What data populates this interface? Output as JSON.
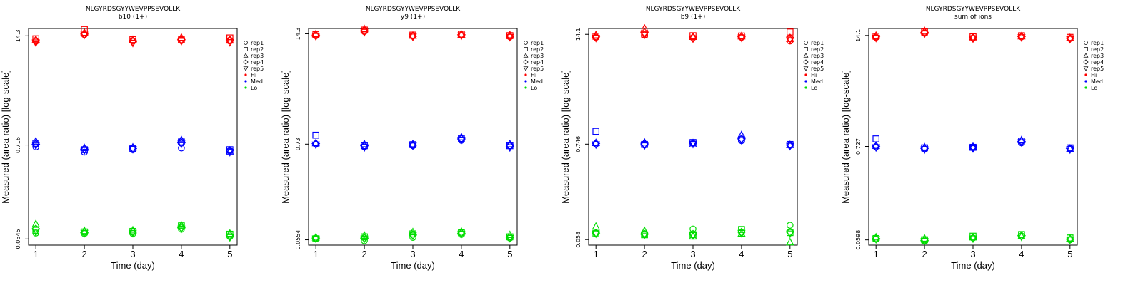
{
  "colors": {
    "Hi": "#ff0000",
    "Med": "#0000ff",
    "Lo": "#00dd00"
  },
  "legend": {
    "placement": "right",
    "reps": [
      {
        "label": "rep1",
        "shape": "circle"
      },
      {
        "label": "rep2",
        "shape": "square"
      },
      {
        "label": "rep3",
        "shape": "triangle-up"
      },
      {
        "label": "rep4",
        "shape": "diamond"
      },
      {
        "label": "rep5",
        "shape": "triangle-down"
      }
    ],
    "levels": [
      "Hi",
      "Med",
      "Lo"
    ]
  },
  "chart_data": [
    {
      "type": "scatter",
      "title": "NLGYRDSGYYWEVPPSEVQLLK",
      "subtitle": "b10 (1+)",
      "xlabel": "Time (day)",
      "ylabel": "Measured (area ratio) [log-scale]",
      "y_scale": "log",
      "x_ticks": [
        1,
        2,
        3,
        4,
        5
      ],
      "y_ticks": [
        0.0545,
        0.716,
        14.3
      ],
      "y_tick_labels": [
        "0.0545",
        "0.716",
        "14.3"
      ],
      "xlim": [
        0.85,
        5.15
      ],
      "ylim": [
        0.046,
        17.5
      ],
      "series": {
        "Hi": {
          "rep1": [
            12.3,
            14.8,
            12.5,
            12.6,
            12.4
          ],
          "rep2": [
            13.2,
            17.0,
            12.9,
            12.8,
            13.5
          ],
          "rep3": [
            12.9,
            15.6,
            12.8,
            13.6,
            12.6
          ],
          "rep4": [
            12.5,
            15.0,
            12.2,
            12.9,
            12.8
          ],
          "rep5": [
            11.9,
            14.7,
            11.8,
            12.4,
            12.0
          ]
        },
        "Med": {
          "rep1": [
            0.68,
            0.59,
            0.63,
            0.66,
            0.61
          ],
          "rep2": [
            0.75,
            0.63,
            0.65,
            0.78,
            0.63
          ],
          "rep3": [
            0.79,
            0.66,
            0.67,
            0.82,
            0.6
          ],
          "rep4": [
            0.73,
            0.64,
            0.65,
            0.76,
            0.62
          ],
          "rep5": [
            0.71,
            0.62,
            0.64,
            0.74,
            0.59
          ]
        },
        "Lo": {
          "rep1": [
            0.064,
            0.063,
            0.063,
            0.071,
            0.058
          ],
          "rep2": [
            0.069,
            0.066,
            0.067,
            0.078,
            0.062
          ],
          "rep3": [
            0.082,
            0.068,
            0.069,
            0.079,
            0.063
          ],
          "rep4": [
            0.072,
            0.065,
            0.066,
            0.074,
            0.06
          ],
          "rep5": [
            0.066,
            0.064,
            0.064,
            0.072,
            0.057
          ]
        }
      }
    },
    {
      "type": "scatter",
      "title": "NLGYRDSGYYWEVPPSEVQLLK",
      "subtitle": "y9 (1+)",
      "xlabel": "Time (day)",
      "ylabel": "Measured (area ratio) [log-scale]",
      "y_scale": "log",
      "x_ticks": [
        1,
        2,
        3,
        4,
        5
      ],
      "y_ticks": [
        0.0554,
        0.73,
        14.3
      ],
      "y_tick_labels": [
        "0.0554",
        "0.73",
        "14.3"
      ],
      "xlim": [
        0.85,
        5.15
      ],
      "ylim": [
        0.048,
        16.5
      ],
      "series": {
        "Hi": {
          "rep1": [
            13.6,
            15.2,
            13.5,
            13.8,
            13.2
          ],
          "rep2": [
            14.0,
            15.8,
            13.8,
            14.1,
            13.6
          ],
          "rep3": [
            14.2,
            16.2,
            13.6,
            14.0,
            13.8
          ],
          "rep4": [
            13.8,
            15.5,
            13.4,
            13.9,
            13.4
          ],
          "rep5": [
            13.4,
            15.0,
            13.2,
            13.6,
            13.1
          ]
        },
        "Med": {
          "rep1": [
            0.73,
            0.68,
            0.7,
            0.81,
            0.7
          ],
          "rep2": [
            0.93,
            0.7,
            0.72,
            0.85,
            0.7
          ],
          "rep3": [
            0.75,
            0.73,
            0.73,
            0.88,
            0.73
          ],
          "rep4": [
            0.74,
            0.7,
            0.71,
            0.84,
            0.69
          ],
          "rep5": [
            0.72,
            0.67,
            0.7,
            0.82,
            0.67
          ]
        },
        "Lo": {
          "rep1": [
            0.057,
            0.054,
            0.059,
            0.064,
            0.058
          ],
          "rep2": [
            0.057,
            0.06,
            0.065,
            0.067,
            0.06
          ],
          "rep3": [
            0.059,
            0.062,
            0.068,
            0.069,
            0.063
          ],
          "rep4": [
            0.058,
            0.058,
            0.063,
            0.066,
            0.059
          ],
          "rep5": [
            0.057,
            0.057,
            0.062,
            0.065,
            0.058
          ]
        }
      }
    },
    {
      "type": "scatter",
      "title": "NLGYRDSGYYWEVPPSEVQLLK",
      "subtitle": "b9 (1+)",
      "xlabel": "Time (day)",
      "ylabel": "Measured (area ratio) [log-scale]",
      "y_scale": "log",
      "x_ticks": [
        1,
        2,
        3,
        4,
        5
      ],
      "y_ticks": [
        0.058,
        0.746,
        14.1
      ],
      "y_tick_labels": [
        "0.058",
        "0.746",
        "14.1"
      ],
      "xlim": [
        0.85,
        5.15
      ],
      "ylim": [
        0.05,
        16.5
      ],
      "series": {
        "Hi": {
          "rep1": [
            13.0,
            13.8,
            12.9,
            13.0,
            11.8
          ],
          "rep2": [
            13.4,
            14.2,
            13.6,
            13.5,
            15.0
          ],
          "rep3": [
            13.8,
            16.5,
            13.2,
            13.4,
            12.5
          ],
          "rep4": [
            13.2,
            14.8,
            13.0,
            13.2,
            12.8
          ],
          "rep5": [
            12.8,
            14.0,
            12.6,
            12.9,
            12.2
          ]
        },
        "Med": {
          "rep1": [
            0.75,
            0.73,
            0.76,
            0.82,
            0.72
          ],
          "rep2": [
            1.05,
            0.74,
            0.78,
            0.85,
            0.74
          ],
          "rep3": [
            0.77,
            0.78,
            0.74,
            0.95,
            0.73
          ],
          "rep4": [
            0.76,
            0.75,
            0.77,
            0.86,
            0.73
          ],
          "rep5": [
            0.74,
            0.72,
            0.75,
            0.83,
            0.71
          ]
        },
        "Lo": {
          "rep1": [
            0.069,
            0.068,
            0.077,
            0.07,
            0.085
          ],
          "rep2": [
            0.068,
            0.066,
            0.066,
            0.076,
            0.07
          ],
          "rep3": [
            0.082,
            0.073,
            0.063,
            0.068,
            0.054
          ],
          "rep4": [
            0.069,
            0.067,
            0.067,
            0.071,
            0.071
          ],
          "rep5": [
            0.068,
            0.066,
            0.065,
            0.069,
            0.068
          ]
        }
      }
    },
    {
      "type": "scatter",
      "title": "NLGYRDSGYYWEVPPSEVQLLK",
      "subtitle": "sum of ions",
      "xlabel": "Time (day)",
      "ylabel": "Measured (area ratio) [log-scale]",
      "y_scale": "log",
      "x_ticks": [
        1,
        2,
        3,
        4,
        5
      ],
      "y_ticks": [
        0.0598,
        0.727,
        14.1
      ],
      "y_tick_labels": [
        "0.0598",
        "0.727",
        "14.1"
      ],
      "xlim": [
        0.85,
        5.15
      ],
      "ylim": [
        0.052,
        17.0
      ],
      "series": {
        "Hi": {
          "rep1": [
            13.4,
            15.0,
            13.2,
            13.6,
            13.0
          ],
          "rep2": [
            13.8,
            15.5,
            13.6,
            14.0,
            13.4
          ],
          "rep3": [
            14.0,
            15.9,
            13.4,
            13.8,
            13.2
          ],
          "rep4": [
            13.6,
            15.3,
            13.3,
            13.7,
            13.1
          ],
          "rep5": [
            13.2,
            14.8,
            13.0,
            13.4,
            12.8
          ]
        },
        "Med": {
          "rep1": [
            0.72,
            0.68,
            0.7,
            0.8,
            0.69
          ],
          "rep2": [
            0.89,
            0.7,
            0.71,
            0.84,
            0.7
          ],
          "rep3": [
            0.74,
            0.71,
            0.72,
            0.86,
            0.68
          ],
          "rep4": [
            0.73,
            0.69,
            0.71,
            0.83,
            0.69
          ],
          "rep5": [
            0.71,
            0.67,
            0.69,
            0.81,
            0.67
          ]
        },
        "Lo": {
          "rep1": [
            0.061,
            0.058,
            0.063,
            0.066,
            0.06
          ],
          "rep2": [
            0.062,
            0.06,
            0.066,
            0.069,
            0.063
          ],
          "rep3": [
            0.064,
            0.062,
            0.064,
            0.066,
            0.062
          ],
          "rep4": [
            0.062,
            0.059,
            0.063,
            0.067,
            0.061
          ],
          "rep5": [
            0.061,
            0.058,
            0.062,
            0.065,
            0.06
          ]
        }
      }
    }
  ]
}
